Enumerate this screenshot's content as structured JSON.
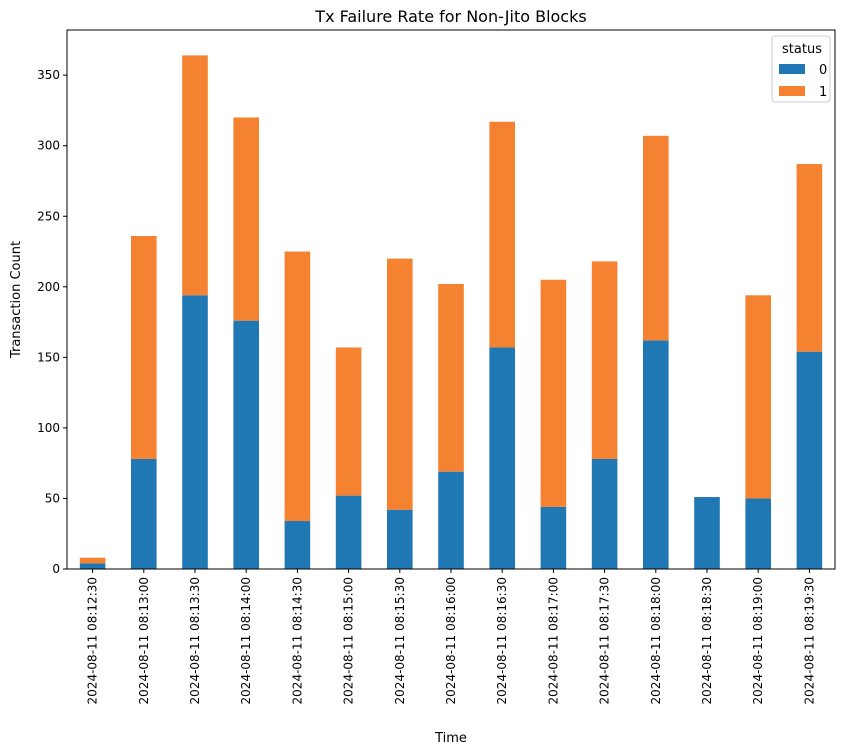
{
  "chart_data": {
    "type": "bar",
    "stacked": true,
    "title": "Tx Failure Rate for Non-Jito Blocks",
    "xlabel": "Time",
    "ylabel": "Transaction Count",
    "ylim": [
      0,
      382
    ],
    "yticks": [
      0,
      50,
      100,
      150,
      200,
      250,
      300,
      350
    ],
    "grid": false,
    "legend": {
      "title": "status",
      "position": "top-right"
    },
    "categories": [
      "2024-08-11 08:12:30",
      "2024-08-11 08:13:00",
      "2024-08-11 08:13:30",
      "2024-08-11 08:14:00",
      "2024-08-11 08:14:30",
      "2024-08-11 08:15:00",
      "2024-08-11 08:15:30",
      "2024-08-11 08:16:00",
      "2024-08-11 08:16:30",
      "2024-08-11 08:17:00",
      "2024-08-11 08:17:30",
      "2024-08-11 08:18:00",
      "2024-08-11 08:18:30",
      "2024-08-11 08:19:00",
      "2024-08-11 08:19:30"
    ],
    "series": [
      {
        "name": "0",
        "color": "#1f77b4",
        "values": [
          4,
          78,
          194,
          176,
          34,
          52,
          42,
          69,
          157,
          44,
          78,
          162,
          51,
          50,
          154
        ]
      },
      {
        "name": "1",
        "color": "#f58231",
        "values": [
          4,
          158,
          170,
          144,
          191,
          105,
          178,
          133,
          160,
          161,
          140,
          145,
          0,
          144,
          133
        ]
      }
    ]
  }
}
